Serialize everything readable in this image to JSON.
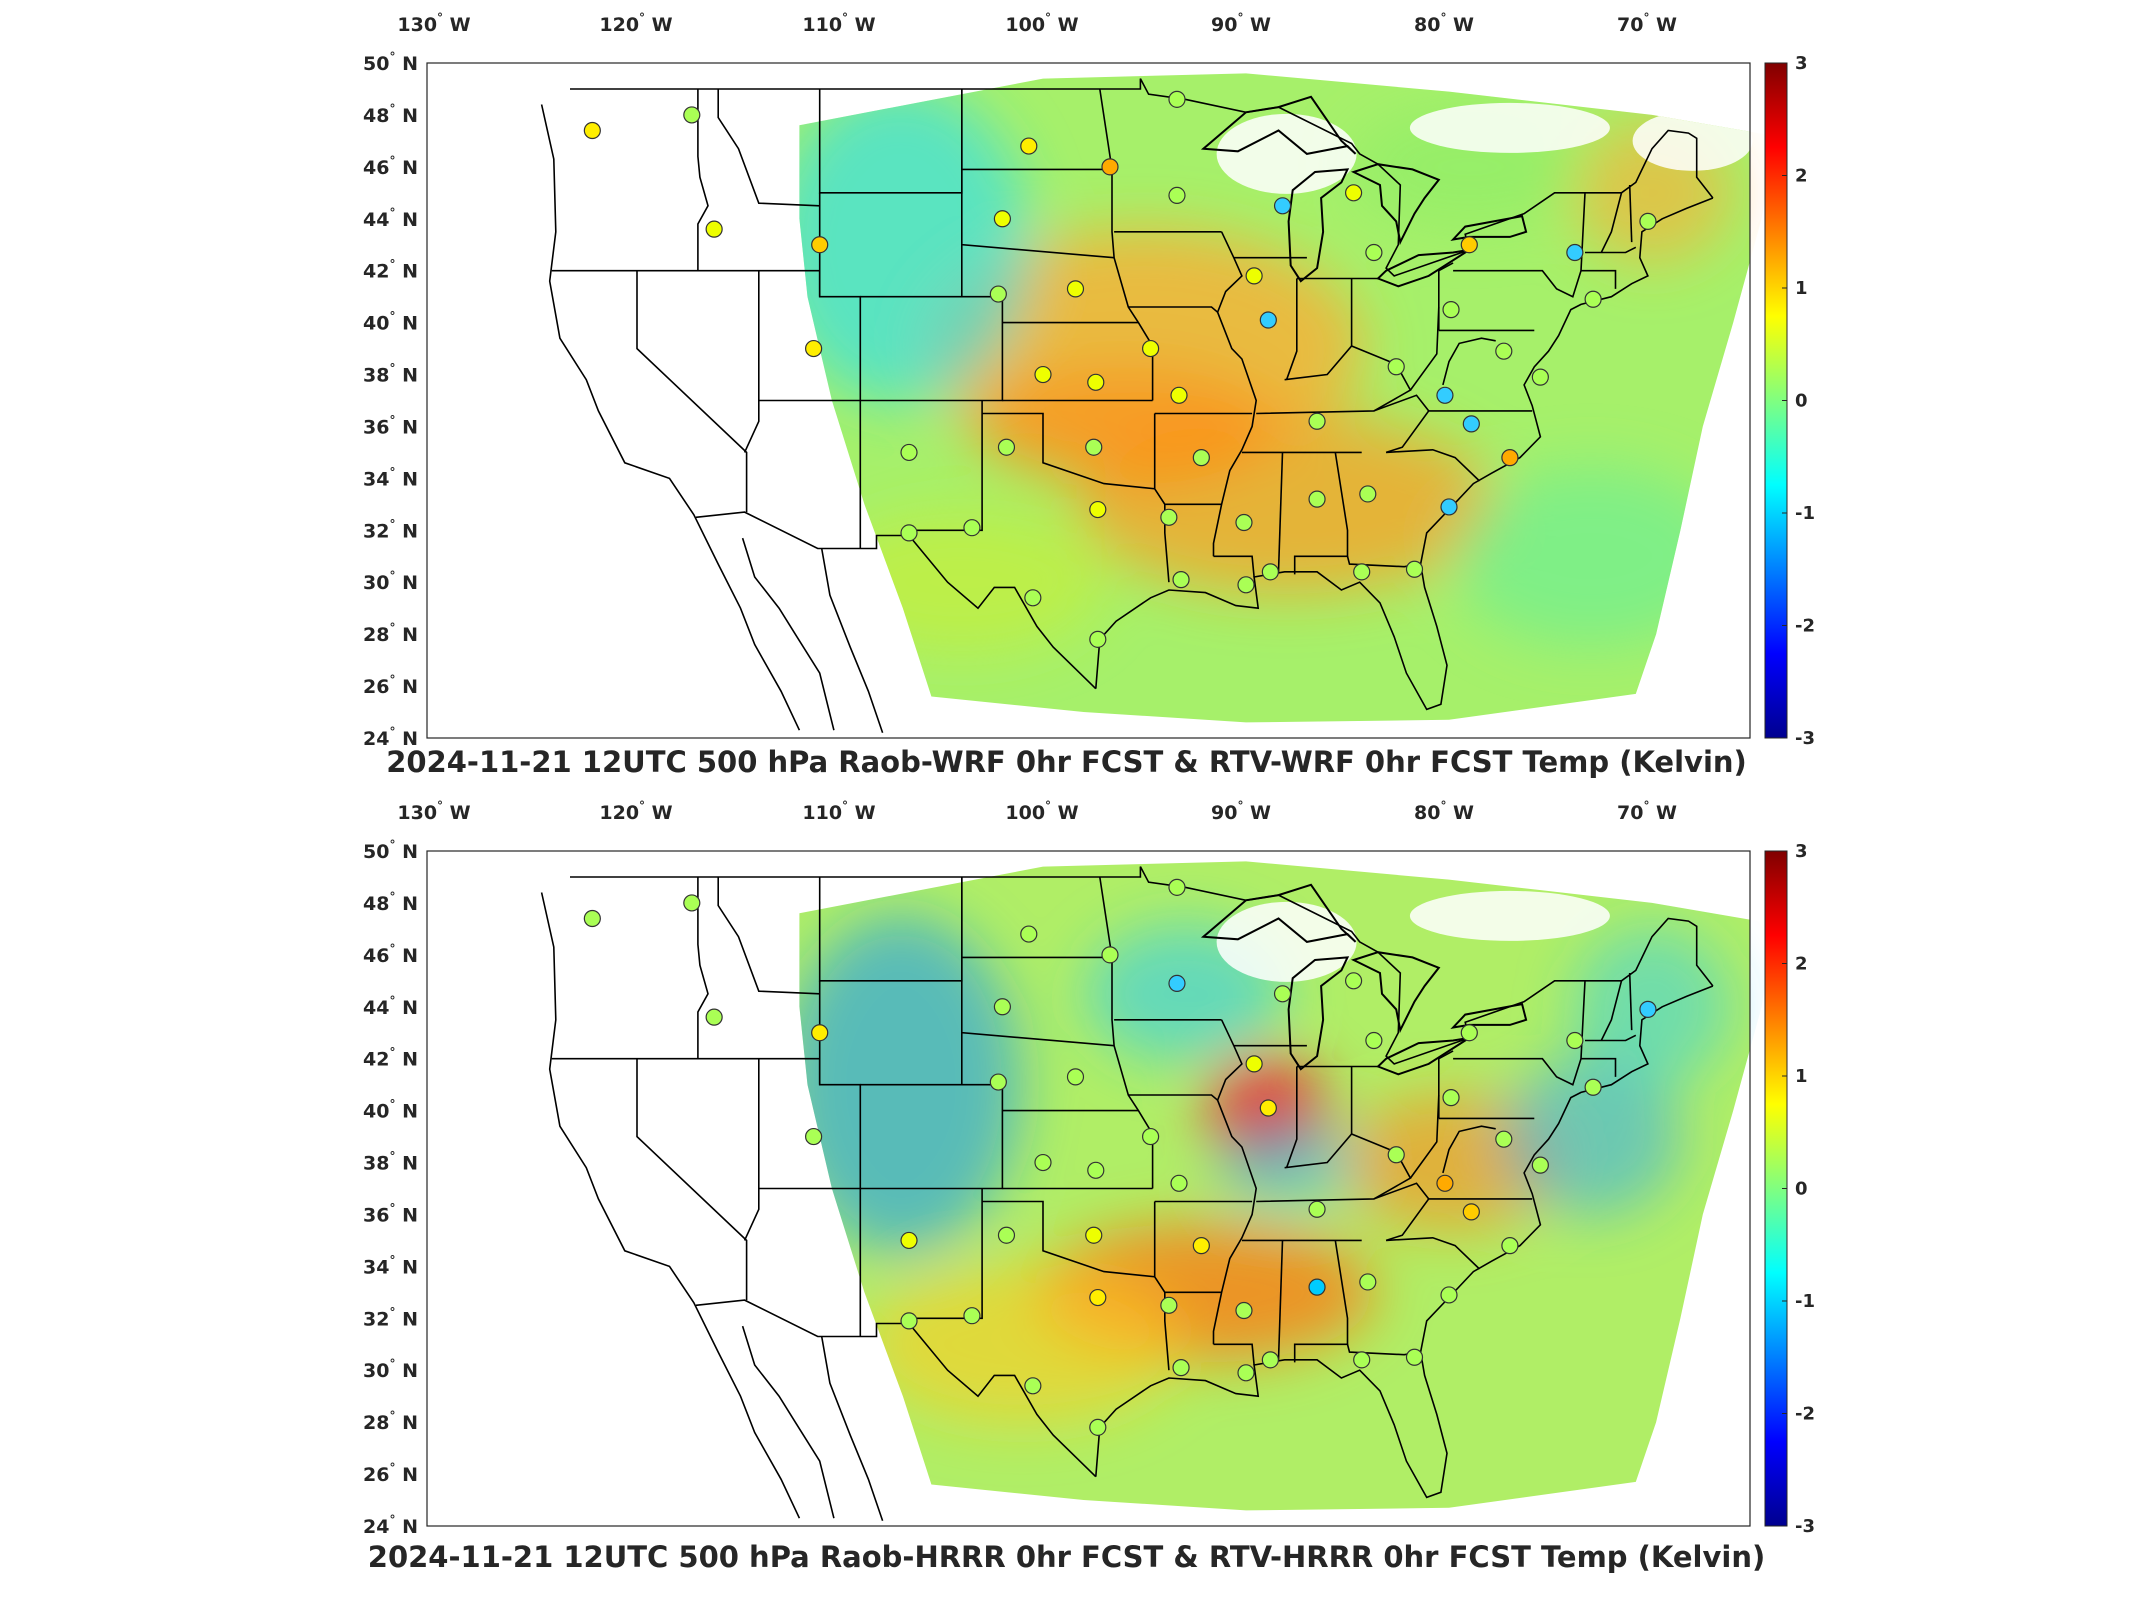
{
  "colors": {
    "frame": "#262626",
    "borders": "#000000",
    "colormap": [
      "#00008f",
      "#0000ff",
      "#0080ff",
      "#00ffff",
      "#80ff80",
      "#ffff00",
      "#ff8000",
      "#ff0000",
      "#800000"
    ]
  },
  "lon_ticks": [
    "130",
    "120",
    "110",
    "100",
    "90",
    "80",
    "70"
  ],
  "lon_unit": "W",
  "lat_ticks": [
    "50",
    "48",
    "46",
    "44",
    "42",
    "40",
    "38",
    "36",
    "34",
    "32",
    "30",
    "28",
    "26",
    "24"
  ],
  "lat_unit": "N",
  "degree_symbol": "°",
  "colorbar": {
    "ticks": [
      "3",
      "2",
      "1",
      "0",
      "-1",
      "-2",
      "-3"
    ],
    "min": -3,
    "max": 3
  },
  "panels": [
    {
      "title": "2024-11-21 12UTC 500 hPa Raob-WRF 0hr FCST & RTV-WRF 0hr FCST Temp (Kelvin)",
      "field": "smooth-warm-plains"
    },
    {
      "title": "2024-11-21 12UTC 500 hPa Raob-HRRR 0hr FCST & RTV-HRRR 0hr FCST Temp (Kelvin)",
      "field": "mixed-with-warm-core"
    }
  ]
}
